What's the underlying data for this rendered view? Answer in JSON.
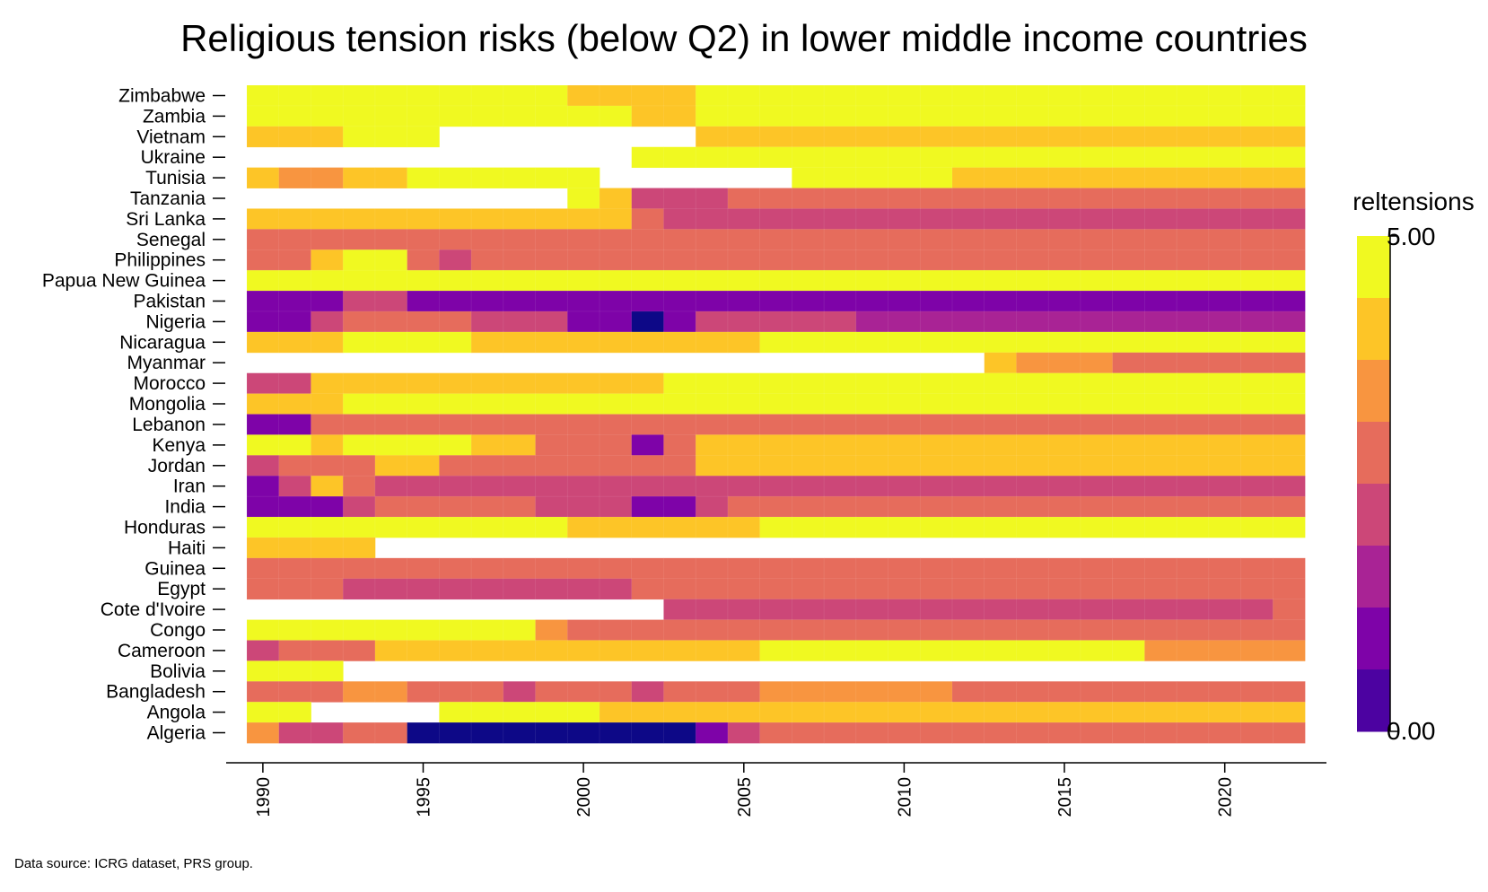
{
  "chart_data": {
    "type": "heatmap",
    "title": "Religious tension risks (below Q2) in lower middle income countries",
    "xlabel": "",
    "ylabel": "",
    "caption": "Data source: ICRG dataset, PRS group.",
    "legend": {
      "title": "reltensions",
      "min_label": "0.00",
      "max_label": "5.00",
      "range": [
        0,
        5
      ],
      "placement": "right"
    },
    "colors": [
      "#0d0887",
      "#4c02a1",
      "#7e03a8",
      "#a92395",
      "#cc4778",
      "#e66c5c",
      "#f89540",
      "#fdc527",
      "#f0f921"
    ],
    "x": [
      1990,
      1991,
      1992,
      1993,
      1994,
      1995,
      1996,
      1997,
      1998,
      1999,
      2000,
      2001,
      2002,
      2003,
      2004,
      2005,
      2006,
      2007,
      2008,
      2009,
      2010,
      2011,
      2012,
      2013,
      2014,
      2015,
      2016,
      2017,
      2018,
      2019,
      2020,
      2021,
      2022
    ],
    "x_ticks": [
      1990,
      1995,
      2000,
      2005,
      2010,
      2015,
      2020
    ],
    "xlim": [
      1989.5,
      2022.5
    ],
    "countries": [
      "Zimbabwe",
      "Zambia",
      "Vietnam",
      "Ukraine",
      "Tunisia",
      "Tanzania",
      "Sri Lanka",
      "Senegal",
      "Philippines",
      "Papua New Guinea",
      "Pakistan",
      "Nigeria",
      "Nicaragua",
      "Myanmar",
      "Morocco",
      "Mongolia",
      "Lebanon",
      "Kenya",
      "Jordan",
      "Iran",
      "India",
      "Honduras",
      "Haiti",
      "Guinea",
      "Egypt",
      "Cote d'Ivoire",
      "Congo",
      "Cameroon",
      "Bolivia",
      "Bangladesh",
      "Angola",
      "Algeria"
    ],
    "runs": {
      "Zimbabwe": [
        [
          1990,
          1999,
          5
        ],
        [
          2000,
          2003,
          4.5
        ],
        [
          2004,
          2022,
          5
        ]
      ],
      "Zambia": [
        [
          1990,
          2001,
          5
        ],
        [
          2002,
          2003,
          4.5
        ],
        [
          2004,
          2022,
          5
        ]
      ],
      "Vietnam": [
        [
          1990,
          1992,
          4.5
        ],
        [
          1993,
          1995,
          5
        ],
        [
          2004,
          2022,
          4.5
        ]
      ],
      "Ukraine": [
        [
          2002,
          2022,
          5
        ]
      ],
      "Tunisia": [
        [
          1990,
          1990,
          4.5
        ],
        [
          1991,
          1992,
          3.5
        ],
        [
          1993,
          1994,
          4.5
        ],
        [
          1995,
          2000,
          5
        ],
        [
          2007,
          2011,
          5
        ],
        [
          2012,
          2022,
          4.5
        ]
      ],
      "Tanzania": [
        [
          2000,
          2000,
          5
        ],
        [
          2001,
          2001,
          4.5
        ],
        [
          2002,
          2004,
          2.5
        ],
        [
          2005,
          2022,
          3
        ]
      ],
      "Sri Lanka": [
        [
          1990,
          2001,
          4.5
        ],
        [
          2002,
          2002,
          3
        ],
        [
          2003,
          2022,
          2.5
        ]
      ],
      "Senegal": [
        [
          1990,
          2022,
          3
        ]
      ],
      "Philippines": [
        [
          1990,
          1991,
          3
        ],
        [
          1992,
          1992,
          4.5
        ],
        [
          1993,
          1994,
          5
        ],
        [
          1995,
          1995,
          3
        ],
        [
          1996,
          1996,
          2.5
        ],
        [
          1997,
          2022,
          3
        ]
      ],
      "Papua New Guinea": [
        [
          1990,
          2022,
          5
        ]
      ],
      "Pakistan": [
        [
          1990,
          1990,
          1
        ],
        [
          1991,
          1991,
          1
        ],
        [
          1992,
          1992,
          1.5
        ],
        [
          1993,
          1994,
          2.5
        ],
        [
          1995,
          2022,
          1
        ]
      ],
      "Nigeria": [
        [
          1990,
          1990,
          1.5
        ],
        [
          1991,
          1991,
          1
        ],
        [
          1992,
          1992,
          2.5
        ],
        [
          1993,
          1996,
          3
        ],
        [
          1997,
          1999,
          2.5
        ],
        [
          2000,
          2001,
          1
        ],
        [
          2002,
          2002,
          0
        ],
        [
          2003,
          2003,
          1.5
        ],
        [
          2004,
          2008,
          2.5
        ],
        [
          2009,
          2022,
          2
        ]
      ],
      "Nicaragua": [
        [
          1990,
          1992,
          4.5
        ],
        [
          1993,
          1996,
          5
        ],
        [
          1997,
          2005,
          4.5
        ],
        [
          2006,
          2022,
          5
        ]
      ],
      "Myanmar": [
        [
          2013,
          2013,
          4.5
        ],
        [
          2014,
          2016,
          3.5
        ],
        [
          2017,
          2022,
          3
        ]
      ],
      "Morocco": [
        [
          1990,
          1991,
          2.5
        ],
        [
          1992,
          2002,
          4.5
        ],
        [
          2003,
          2022,
          5
        ]
      ],
      "Mongolia": [
        [
          1990,
          1992,
          4.5
        ],
        [
          1993,
          2022,
          5
        ]
      ],
      "Lebanon": [
        [
          1990,
          1990,
          1
        ],
        [
          1991,
          1991,
          1.5
        ],
        [
          1992,
          2022,
          3
        ]
      ],
      "Kenya": [
        [
          1990,
          1991,
          5
        ],
        [
          1992,
          1992,
          4.5
        ],
        [
          1993,
          1996,
          5
        ],
        [
          1997,
          1998,
          4.5
        ],
        [
          1999,
          2001,
          3
        ],
        [
          2002,
          2002,
          1.5
        ],
        [
          2003,
          2003,
          3
        ],
        [
          2004,
          2022,
          4.5
        ]
      ],
      "Jordan": [
        [
          1990,
          1990,
          2.5
        ],
        [
          1991,
          1993,
          3
        ],
        [
          1994,
          1995,
          4.5
        ],
        [
          1996,
          2003,
          3
        ],
        [
          2004,
          2022,
          4.5
        ]
      ],
      "Iran": [
        [
          1990,
          1990,
          1.5
        ],
        [
          1991,
          1991,
          2.5
        ],
        [
          1992,
          1992,
          4.5
        ],
        [
          1993,
          1993,
          3
        ],
        [
          1994,
          2022,
          2.5
        ]
      ],
      "India": [
        [
          1990,
          1990,
          1.5
        ],
        [
          1991,
          1991,
          1
        ],
        [
          1992,
          1992,
          1.5
        ],
        [
          1993,
          1993,
          2.5
        ],
        [
          1994,
          1998,
          3
        ],
        [
          1999,
          2001,
          2.5
        ],
        [
          2002,
          2003,
          1
        ],
        [
          2004,
          2004,
          2.5
        ],
        [
          2005,
          2022,
          3
        ]
      ],
      "Honduras": [
        [
          1990,
          1999,
          5
        ],
        [
          2000,
          2005,
          4.5
        ],
        [
          2006,
          2022,
          5
        ]
      ],
      "Haiti": [
        [
          1990,
          1993,
          4.5
        ]
      ],
      "Guinea": [
        [
          1990,
          2022,
          3
        ]
      ],
      "Egypt": [
        [
          1990,
          1992,
          3
        ],
        [
          1993,
          2001,
          2.5
        ],
        [
          2002,
          2022,
          3
        ]
      ],
      "Cote d'Ivoire": [
        [
          2003,
          2021,
          2.5
        ],
        [
          2022,
          2022,
          3
        ]
      ],
      "Congo": [
        [
          1990,
          1998,
          5
        ],
        [
          1999,
          1999,
          3.5
        ],
        [
          2000,
          2022,
          3
        ]
      ],
      "Cameroon": [
        [
          1990,
          1990,
          2.5
        ],
        [
          1991,
          1993,
          3
        ],
        [
          1994,
          2005,
          4.5
        ],
        [
          2006,
          2017,
          5
        ],
        [
          2018,
          2022,
          3.5
        ]
      ],
      "Bolivia": [
        [
          1990,
          1992,
          5
        ]
      ],
      "Bangladesh": [
        [
          1990,
          1992,
          3
        ],
        [
          1993,
          1994,
          3.5
        ],
        [
          1995,
          1997,
          3
        ],
        [
          1998,
          1998,
          2.5
        ],
        [
          1999,
          2001,
          3
        ],
        [
          2002,
          2002,
          2.5
        ],
        [
          2003,
          2005,
          3
        ],
        [
          2006,
          2011,
          3.5
        ],
        [
          2012,
          2022,
          3
        ]
      ],
      "Angola": [
        [
          1990,
          1991,
          5
        ],
        [
          1996,
          2000,
          5
        ],
        [
          2001,
          2022,
          4.5
        ]
      ],
      "Algeria": [
        [
          1990,
          1990,
          3.5
        ],
        [
          1991,
          1992,
          2.5
        ],
        [
          1993,
          1994,
          3
        ],
        [
          1995,
          2003,
          0
        ],
        [
          2004,
          2004,
          1
        ],
        [
          2005,
          2005,
          2.5
        ],
        [
          2006,
          2022,
          3
        ]
      ]
    }
  }
}
